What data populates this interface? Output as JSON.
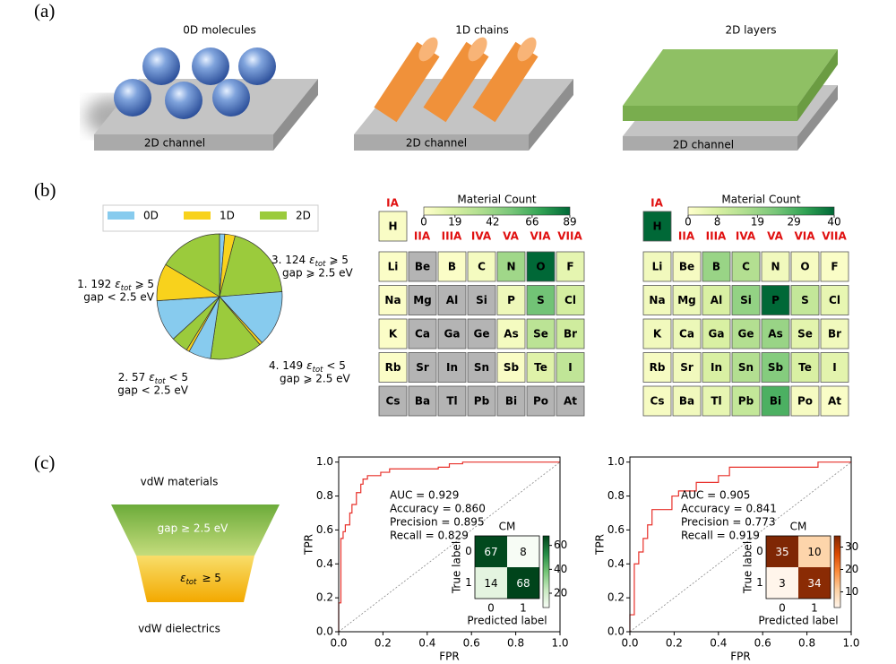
{
  "panel_labels": [
    "(a)",
    "(b)",
    "(c)"
  ],
  "panel_a": {
    "items": [
      {
        "title": "0D molecules",
        "substrate": "2D channel"
      },
      {
        "title": "1D chains",
        "substrate": "2D channel"
      },
      {
        "title": "2D layers",
        "substrate": "2D channel"
      }
    ]
  },
  "funnel": {
    "top": "vdW materials",
    "stage1": "gap ≥ 2.5 eV",
    "stage2": {
      "symbol": "ε",
      "sub": "tot",
      "suffix": "≥ 5"
    },
    "bottom": "vdW dielectrics"
  },
  "chart_data": [
    {
      "type": "pie",
      "series": [
        {
          "name": "0D",
          "color": "#87cbee",
          "values": [
            7,
            75,
            30,
            56
          ]
        },
        {
          "name": "1D",
          "color": "#f8d21c",
          "values": [
            14,
            4,
            4,
            50
          ]
        },
        {
          "name": "2D",
          "color": "#9bcb3c",
          "values": [
            103,
            70,
            23,
            86
          ]
        }
      ],
      "group_labels": [
        {
          "prefix": "3. 124",
          "symbol": "ε",
          "sub": "tot",
          "suffix": "⩾ 5",
          "line2": "gap ⩾ 2.5 eV"
        },
        {
          "prefix": "4. 149",
          "symbol": "ε",
          "sub": "tot",
          "suffix": "< 5",
          "line2": "gap ⩾ 2.5 eV"
        },
        {
          "prefix": "2. 57",
          "symbol": "ε",
          "sub": "tot",
          "suffix": "< 5",
          "line2": "gap < 2.5 eV"
        },
        {
          "prefix": "1. 192",
          "symbol": "ε",
          "sub": "tot",
          "suffix": "⩾ 5",
          "line2": "gap < 2.5 eV"
        }
      ]
    },
    {
      "type": "heatmap",
      "colorbar_title": "Material Count",
      "cmap": "YlGn",
      "zero_color": "#b4b4b4",
      "clim": [
        0,
        89
      ],
      "cticks": [
        0,
        19,
        42,
        66,
        89
      ],
      "groups": [
        "IA",
        "IIA",
        "IIIA",
        "IVA",
        "VA",
        "VIA",
        "VIIA"
      ],
      "elements": [
        "H",
        "Li",
        "Be",
        "B",
        "C",
        "N",
        "O",
        "F",
        "Na",
        "Mg",
        "Al",
        "Si",
        "P",
        "S",
        "Cl",
        "K",
        "Ca",
        "Ga",
        "Ge",
        "As",
        "Se",
        "Br",
        "Rb",
        "Sr",
        "In",
        "Sn",
        "Sb",
        "Te",
        "I",
        "Cs",
        "Ba",
        "Tl",
        "Pb",
        "Bi",
        "Po",
        "At"
      ],
      "values": [
        3,
        2,
        0,
        2,
        5,
        40,
        89,
        12,
        2,
        0,
        0,
        0,
        8,
        55,
        20,
        2,
        0,
        0,
        0,
        5,
        30,
        22,
        2,
        0,
        0,
        0,
        3,
        15,
        28,
        0,
        0,
        0,
        0,
        0,
        0,
        0
      ]
    },
    {
      "type": "heatmap",
      "colorbar_title": "Material Count",
      "cmap": "YlGn",
      "zero_color": "#b4b4b4",
      "clim": [
        0,
        40
      ],
      "cticks": [
        0,
        8,
        19,
        29,
        40
      ],
      "groups": [
        "IA",
        "IIA",
        "IIIA",
        "IVA",
        "VA",
        "VIA",
        "VIIA"
      ],
      "elements": [
        "H",
        "Li",
        "Be",
        "B",
        "C",
        "N",
        "O",
        "F",
        "Na",
        "Mg",
        "Al",
        "Si",
        "P",
        "S",
        "Cl",
        "K",
        "Ca",
        "Ga",
        "Ge",
        "As",
        "Se",
        "Br",
        "Rb",
        "Sr",
        "In",
        "Sn",
        "Sb",
        "Te",
        "I",
        "Cs",
        "Ba",
        "Tl",
        "Pb",
        "Bi",
        "Po",
        "At"
      ],
      "values": [
        40,
        3,
        2,
        19,
        15,
        3,
        2,
        1,
        3,
        4,
        8,
        20,
        40,
        12,
        5,
        3,
        4,
        8,
        15,
        19,
        6,
        3,
        2,
        3,
        8,
        15,
        22,
        8,
        6,
        2,
        3,
        5,
        12,
        29,
        2,
        1
      ]
    },
    {
      "type": "line",
      "color": "#e8302a",
      "xlabel": "FPR",
      "ylabel": "TPR",
      "xlim": [
        0,
        1
      ],
      "ylim": [
        0,
        1.03
      ],
      "xticks": [
        {
          "value": 0,
          "label": "0.0"
        },
        0.2,
        0.4,
        0.6,
        0.8,
        {
          "value": 1,
          "label": "1.0"
        }
      ],
      "yticks": [
        {
          "value": 0,
          "label": "0.0"
        },
        0.2,
        0.4,
        0.6,
        0.8,
        {
          "value": 1,
          "label": "1.0"
        }
      ],
      "x": [
        0,
        0,
        0.01,
        0.01,
        0.02,
        0.02,
        0.03,
        0.03,
        0.05,
        0.05,
        0.06,
        0.06,
        0.08,
        0.08,
        0.1,
        0.1,
        0.11,
        0.11,
        0.13,
        0.13,
        0.19,
        0.19,
        0.23,
        0.23,
        0.45,
        0.45,
        0.5,
        0.5,
        0.56,
        0.56,
        1.0
      ],
      "values": [
        0,
        0.17,
        0.17,
        0.55,
        0.55,
        0.59,
        0.59,
        0.63,
        0.63,
        0.7,
        0.7,
        0.75,
        0.75,
        0.82,
        0.82,
        0.87,
        0.87,
        0.9,
        0.9,
        0.92,
        0.92,
        0.94,
        0.94,
        0.96,
        0.96,
        0.97,
        0.97,
        0.99,
        0.99,
        1.0,
        1.0
      ],
      "annotations": [
        "AUC = 0.929",
        "Accuracy = 0.860",
        "Precision = 0.895",
        "Recall = 0.829"
      ],
      "inset": {
        "title": "CM",
        "matrix": [
          [
            67,
            8
          ],
          [
            14,
            68
          ]
        ],
        "ticklabels": [
          0,
          1
        ],
        "xlabel": "Predicted label",
        "ylabel": "True label",
        "cmap": "Greens",
        "clim": [
          8,
          68
        ],
        "cticks": [
          20,
          40,
          60
        ]
      }
    },
    {
      "type": "line",
      "color": "#e8302a",
      "xlabel": "FPR",
      "ylabel": "TPR",
      "xlim": [
        0,
        1
      ],
      "ylim": [
        0,
        1.03
      ],
      "xticks": [
        {
          "value": 0,
          "label": "0.0"
        },
        0.2,
        0.4,
        0.6,
        0.8,
        {
          "value": 1,
          "label": "1.0"
        }
      ],
      "yticks": [
        {
          "value": 0,
          "label": "0.0"
        },
        0.2,
        0.4,
        0.6,
        0.8,
        {
          "value": 1,
          "label": "1.0"
        }
      ],
      "x": [
        0,
        0,
        0.02,
        0.02,
        0.04,
        0.04,
        0.06,
        0.06,
        0.08,
        0.08,
        0.1,
        0.1,
        0.19,
        0.19,
        0.22,
        0.22,
        0.3,
        0.3,
        0.4,
        0.4,
        0.45,
        0.45,
        0.85,
        0.85,
        1.0
      ],
      "values": [
        0,
        0.1,
        0.1,
        0.4,
        0.4,
        0.47,
        0.47,
        0.55,
        0.55,
        0.63,
        0.63,
        0.72,
        0.72,
        0.8,
        0.8,
        0.83,
        0.83,
        0.88,
        0.88,
        0.92,
        0.92,
        0.97,
        0.97,
        1.0,
        1.0
      ],
      "annotations": [
        "AUC = 0.905",
        "Accuracy = 0.841",
        "Precision = 0.773",
        "Recall = 0.919"
      ],
      "inset": {
        "title": "CM",
        "matrix": [
          [
            35,
            10
          ],
          [
            3,
            34
          ]
        ],
        "ticklabels": [
          0,
          1
        ],
        "xlabel": "Predicted label",
        "ylabel": "True label",
        "cmap": "Oranges",
        "clim": [
          3,
          35
        ],
        "cticks": [
          10,
          20,
          30
        ]
      }
    }
  ]
}
